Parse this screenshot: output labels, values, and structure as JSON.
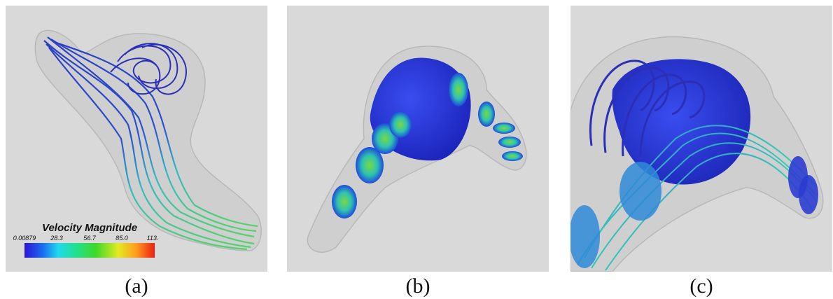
{
  "captions": [
    "(a)",
    "(b)",
    "(c)"
  ],
  "legend": {
    "title": "Velocity Magnitude",
    "ticks": [
      "0.00879",
      "28.3",
      "56.7",
      "85.0",
      "113."
    ]
  },
  "colors": {
    "background": "#d9d9d9",
    "low": "#2c13d6",
    "mid": "#3fd82a",
    "high": "#ee1c14"
  }
}
